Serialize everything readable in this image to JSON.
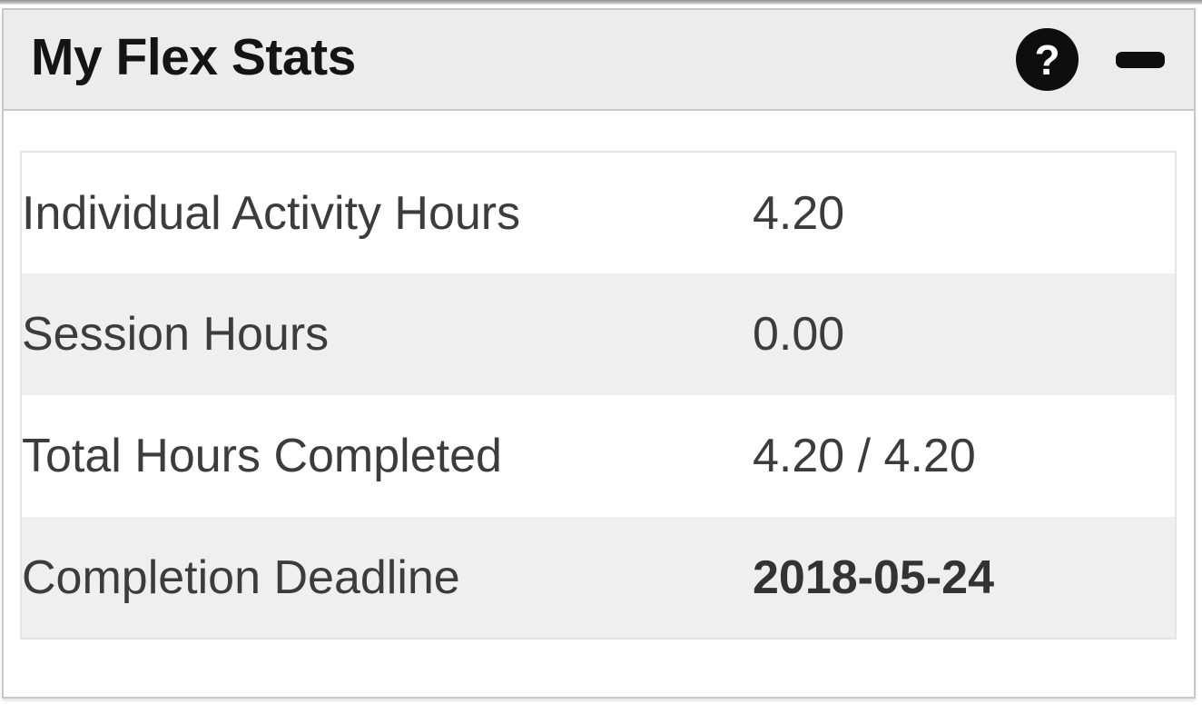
{
  "widget": {
    "title": "My Flex Stats",
    "header": {
      "icons": [
        {
          "name": "help-icon",
          "glyph": "?"
        },
        {
          "name": "collapse-icon",
          "glyph": "minus"
        }
      ]
    },
    "stats": {
      "rows": [
        {
          "label": "Individual Activity Hours",
          "value": "4.20",
          "bold_value": false
        },
        {
          "label": "Session Hours",
          "value": "0.00",
          "bold_value": false
        },
        {
          "label": "Total Hours Completed",
          "value": "4.20 / 4.20",
          "bold_value": false
        },
        {
          "label": "Completion Deadline",
          "value": "2018-05-24",
          "bold_value": true
        }
      ]
    },
    "colors": {
      "header_bg": "#ececec",
      "row_stripe_bg": "#efefef",
      "widget_border": "#c7c7c7",
      "table_border": "#e4e4e4",
      "icon_bg": "#0e0e0e",
      "text": "#3c3c3c",
      "title_text": "#141414"
    }
  }
}
